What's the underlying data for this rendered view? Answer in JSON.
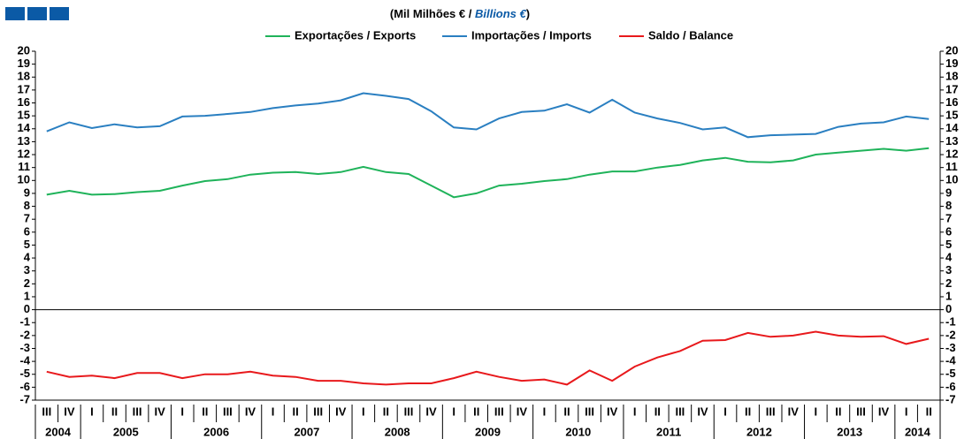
{
  "chart_data": {
    "type": "line",
    "title": [
      "(Mil Milhões € / ",
      "Billions €",
      ")"
    ],
    "categories": [
      "III",
      "IV",
      "I",
      "II",
      "III",
      "IV",
      "I",
      "II",
      "III",
      "IV",
      "I",
      "II",
      "III",
      "IV",
      "I",
      "II",
      "III",
      "IV",
      "I",
      "II",
      "III",
      "IV",
      "I",
      "II",
      "III",
      "IV",
      "I",
      "II",
      "III",
      "IV",
      "I",
      "II",
      "III",
      "IV",
      "I",
      "II",
      "III",
      "IV",
      "I",
      "II"
    ],
    "years": [
      "2004",
      "2005",
      "2006",
      "2007",
      "2008",
      "2009",
      "2010",
      "2011",
      "2012",
      "2013",
      "2014"
    ],
    "series": [
      {
        "name": "Exportações / Exports",
        "color": "#1fb35a",
        "values": [
          8.9,
          9.2,
          8.9,
          8.95,
          9.1,
          9.2,
          9.6,
          9.95,
          10.1,
          10.45,
          10.6,
          10.65,
          10.5,
          10.65,
          11.05,
          10.65,
          10.5,
          9.6,
          8.7,
          9.0,
          9.6,
          9.75,
          9.95,
          10.1,
          10.45,
          10.7,
          10.7,
          11.0,
          11.2,
          11.55,
          11.75,
          11.45,
          11.4,
          11.55,
          12.0,
          12.15,
          12.3,
          12.45,
          12.3,
          12.5
        ]
      },
      {
        "name": "Importações / Imports",
        "color": "#2a7fc1",
        "values": [
          13.8,
          14.5,
          14.05,
          14.35,
          14.1,
          14.2,
          14.95,
          15.0,
          15.15,
          15.3,
          15.6,
          15.8,
          15.95,
          16.2,
          16.75,
          16.55,
          16.3,
          15.35,
          14.1,
          13.95,
          14.8,
          15.3,
          15.4,
          15.9,
          15.25,
          16.25,
          15.25,
          14.8,
          14.45,
          13.95,
          14.1,
          13.35,
          13.5,
          13.55,
          13.6,
          14.15,
          14.4,
          14.5,
          14.95,
          14.75
        ]
      },
      {
        "name": "Saldo / Balance",
        "color": "#e8191c",
        "values": [
          -4.8,
          -5.2,
          -5.1,
          -5.3,
          -4.9,
          -4.9,
          -5.3,
          -5.0,
          -5.0,
          -4.8,
          -5.1,
          -5.2,
          -5.5,
          -5.5,
          -5.7,
          -5.8,
          -5.7,
          -5.7,
          -5.3,
          -4.8,
          -5.2,
          -5.5,
          -5.4,
          -5.8,
          -4.7,
          -5.5,
          -4.4,
          -3.7,
          -3.2,
          -2.4,
          -2.35,
          -1.8,
          -2.1,
          -2.0,
          -1.7,
          -2.0,
          -2.1,
          -2.05,
          -2.65,
          -2.25
        ]
      }
    ],
    "ylim": [
      -7,
      20
    ],
    "yticks": [
      -7,
      -6,
      -5,
      -4,
      -3,
      -2,
      -1,
      0,
      1,
      2,
      3,
      4,
      5,
      6,
      7,
      8,
      9,
      10,
      11,
      12,
      13,
      14,
      15,
      16,
      17,
      18,
      19,
      20
    ]
  }
}
